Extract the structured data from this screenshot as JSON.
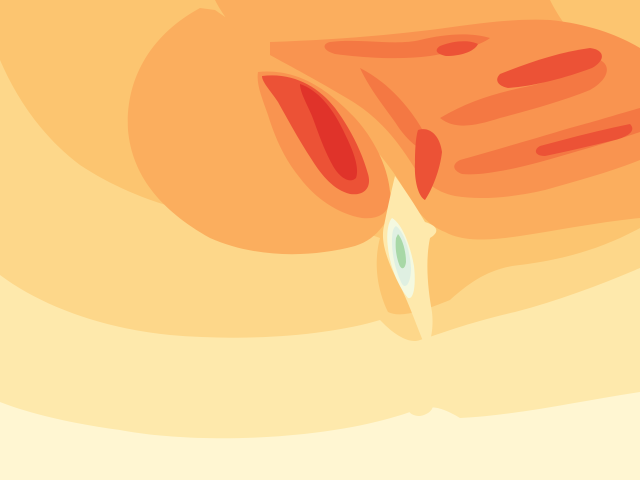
{
  "map": {
    "palette": {
      "level_0": "#fff6d2",
      "level_1": "#fee9ac",
      "level_2": "#fdd78a",
      "level_3": "#fcc570",
      "level_4": "#fbae5e",
      "level_5": "#f99450",
      "level_6": "#f47843",
      "level_7": "#ec5236",
      "level_8": "#e0332a",
      "low_1": "#f4f9e0",
      "low_2": "#dff0e2",
      "low_3": "#a8d8a6"
    }
  }
}
